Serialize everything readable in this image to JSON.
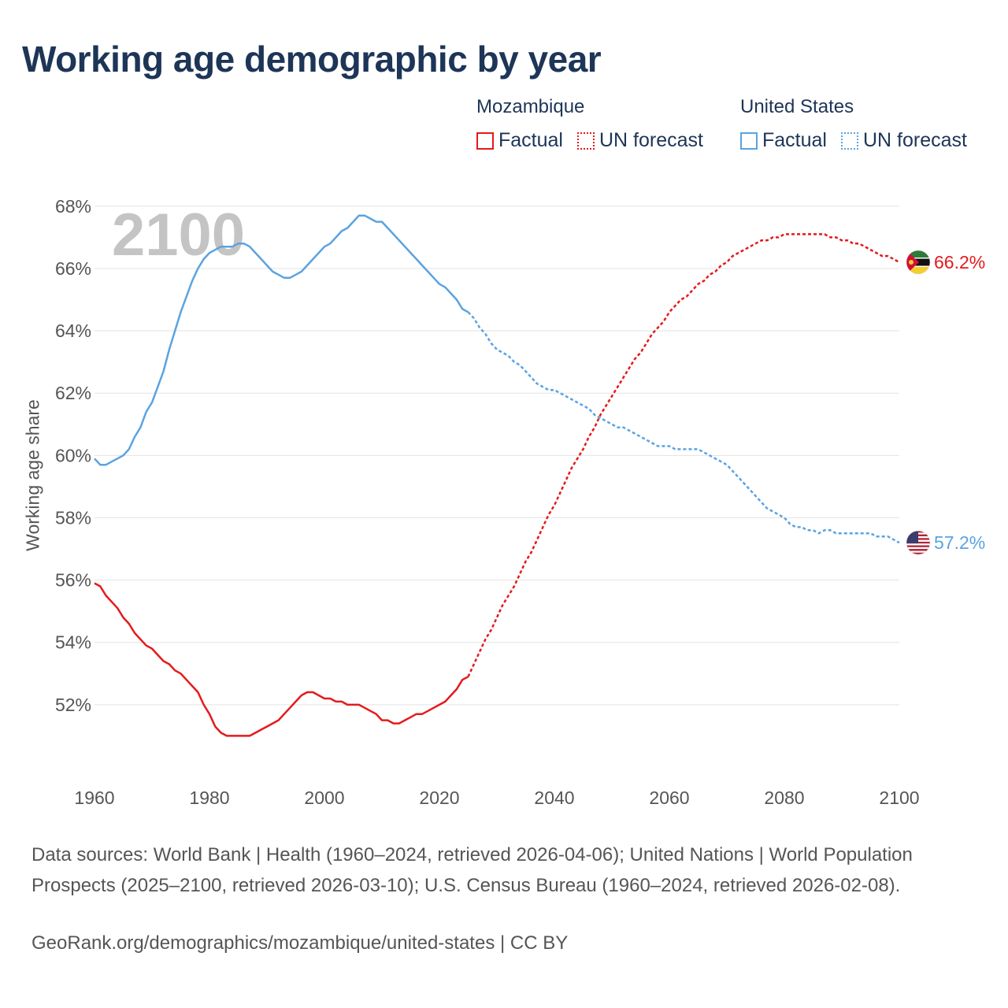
{
  "title": "Working age demographic by year",
  "year_watermark": "2100",
  "legend": {
    "groups": [
      {
        "country": "Mozambique",
        "color": "#e41a1c",
        "factual": "Factual",
        "forecast": "UN forecast"
      },
      {
        "country": "United States",
        "color": "#5ba3e0",
        "factual": "Factual",
        "forecast": "UN forecast"
      }
    ]
  },
  "sources": "Data sources: World Bank | Health (1960–2024, retrieved 2026-04-06); United Nations | World Population Prospects (2025–2100, retrieved 2026-03-10); U.S. Census Bureau (1960–2024, retrieved 2026-02-08).",
  "url": "GeoRank.org/demographics/mozambique/united-states | CC BY",
  "chart_data": {
    "type": "line",
    "title": "Working age demographic by year",
    "xlabel": "",
    "ylabel": "Working age share",
    "xlim": [
      1960,
      2100
    ],
    "ylim": [
      50,
      68.5
    ],
    "x_ticks": [
      1960,
      1980,
      2000,
      2020,
      2040,
      2060,
      2080,
      2100
    ],
    "y_ticks": [
      52,
      54,
      56,
      58,
      60,
      62,
      64,
      66,
      68
    ],
    "y_tick_labels": [
      "52%",
      "54%",
      "56%",
      "58%",
      "60%",
      "62%",
      "64%",
      "66%",
      "68%"
    ],
    "forecast_start": 2024,
    "series": [
      {
        "name": "Mozambique",
        "color": "#e41a1c",
        "end_label": "66.2%",
        "flag": "mozambique-flag-icon",
        "points": [
          [
            1960,
            55.9
          ],
          [
            1961,
            55.8
          ],
          [
            1962,
            55.5
          ],
          [
            1963,
            55.3
          ],
          [
            1964,
            55.1
          ],
          [
            1965,
            54.8
          ],
          [
            1966,
            54.6
          ],
          [
            1967,
            54.3
          ],
          [
            1968,
            54.1
          ],
          [
            1969,
            53.9
          ],
          [
            1970,
            53.8
          ],
          [
            1971,
            53.6
          ],
          [
            1972,
            53.4
          ],
          [
            1973,
            53.3
          ],
          [
            1974,
            53.1
          ],
          [
            1975,
            53.0
          ],
          [
            1976,
            52.8
          ],
          [
            1977,
            52.6
          ],
          [
            1978,
            52.4
          ],
          [
            1979,
            52.0
          ],
          [
            1980,
            51.7
          ],
          [
            1981,
            51.3
          ],
          [
            1982,
            51.1
          ],
          [
            1983,
            51.0
          ],
          [
            1984,
            51.0
          ],
          [
            1985,
            51.0
          ],
          [
            1986,
            51.0
          ],
          [
            1987,
            51.0
          ],
          [
            1988,
            51.1
          ],
          [
            1989,
            51.2
          ],
          [
            1990,
            51.3
          ],
          [
            1991,
            51.4
          ],
          [
            1992,
            51.5
          ],
          [
            1993,
            51.7
          ],
          [
            1994,
            51.9
          ],
          [
            1995,
            52.1
          ],
          [
            1996,
            52.3
          ],
          [
            1997,
            52.4
          ],
          [
            1998,
            52.4
          ],
          [
            1999,
            52.3
          ],
          [
            2000,
            52.2
          ],
          [
            2001,
            52.2
          ],
          [
            2002,
            52.1
          ],
          [
            2003,
            52.1
          ],
          [
            2004,
            52.0
          ],
          [
            2005,
            52.0
          ],
          [
            2006,
            52.0
          ],
          [
            2007,
            51.9
          ],
          [
            2008,
            51.8
          ],
          [
            2009,
            51.7
          ],
          [
            2010,
            51.5
          ],
          [
            2011,
            51.5
          ],
          [
            2012,
            51.4
          ],
          [
            2013,
            51.4
          ],
          [
            2014,
            51.5
          ],
          [
            2015,
            51.6
          ],
          [
            2016,
            51.7
          ],
          [
            2017,
            51.7
          ],
          [
            2018,
            51.8
          ],
          [
            2019,
            51.9
          ],
          [
            2020,
            52.0
          ],
          [
            2021,
            52.1
          ],
          [
            2022,
            52.3
          ],
          [
            2023,
            52.5
          ],
          [
            2024,
            52.8
          ],
          [
            2025,
            52.9
          ],
          [
            2026,
            53.3
          ],
          [
            2027,
            53.7
          ],
          [
            2028,
            54.1
          ],
          [
            2029,
            54.4
          ],
          [
            2030,
            54.8
          ],
          [
            2031,
            55.2
          ],
          [
            2032,
            55.5
          ],
          [
            2033,
            55.8
          ],
          [
            2034,
            56.2
          ],
          [
            2035,
            56.6
          ],
          [
            2036,
            56.9
          ],
          [
            2037,
            57.3
          ],
          [
            2038,
            57.7
          ],
          [
            2039,
            58.1
          ],
          [
            2040,
            58.4
          ],
          [
            2041,
            58.8
          ],
          [
            2042,
            59.2
          ],
          [
            2043,
            59.6
          ],
          [
            2044,
            59.9
          ],
          [
            2045,
            60.2
          ],
          [
            2046,
            60.6
          ],
          [
            2047,
            60.9
          ],
          [
            2048,
            61.3
          ],
          [
            2049,
            61.6
          ],
          [
            2050,
            61.9
          ],
          [
            2051,
            62.2
          ],
          [
            2052,
            62.5
          ],
          [
            2053,
            62.8
          ],
          [
            2054,
            63.1
          ],
          [
            2055,
            63.3
          ],
          [
            2056,
            63.6
          ],
          [
            2057,
            63.9
          ],
          [
            2058,
            64.1
          ],
          [
            2059,
            64.3
          ],
          [
            2060,
            64.6
          ],
          [
            2061,
            64.8
          ],
          [
            2062,
            65.0
          ],
          [
            2063,
            65.1
          ],
          [
            2064,
            65.3
          ],
          [
            2065,
            65.5
          ],
          [
            2066,
            65.6
          ],
          [
            2067,
            65.8
          ],
          [
            2068,
            65.9
          ],
          [
            2069,
            66.1
          ],
          [
            2070,
            66.2
          ],
          [
            2071,
            66.4
          ],
          [
            2072,
            66.5
          ],
          [
            2073,
            66.6
          ],
          [
            2074,
            66.7
          ],
          [
            2075,
            66.8
          ],
          [
            2076,
            66.9
          ],
          [
            2077,
            66.9
          ],
          [
            2078,
            67.0
          ],
          [
            2079,
            67.0
          ],
          [
            2080,
            67.1
          ],
          [
            2081,
            67.1
          ],
          [
            2082,
            67.1
          ],
          [
            2083,
            67.1
          ],
          [
            2084,
            67.1
          ],
          [
            2085,
            67.1
          ],
          [
            2086,
            67.1
          ],
          [
            2087,
            67.1
          ],
          [
            2088,
            67.0
          ],
          [
            2089,
            67.0
          ],
          [
            2090,
            66.9
          ],
          [
            2091,
            66.9
          ],
          [
            2092,
            66.8
          ],
          [
            2093,
            66.8
          ],
          [
            2094,
            66.7
          ],
          [
            2095,
            66.6
          ],
          [
            2096,
            66.5
          ],
          [
            2097,
            66.4
          ],
          [
            2098,
            66.4
          ],
          [
            2099,
            66.3
          ],
          [
            2100,
            66.2
          ]
        ]
      },
      {
        "name": "United States",
        "color": "#5ba3e0",
        "end_label": "57.2%",
        "flag": "united-states-flag-icon",
        "points": [
          [
            1960,
            59.9
          ],
          [
            1961,
            59.7
          ],
          [
            1962,
            59.7
          ],
          [
            1963,
            59.8
          ],
          [
            1964,
            59.9
          ],
          [
            1965,
            60.0
          ],
          [
            1966,
            60.2
          ],
          [
            1967,
            60.6
          ],
          [
            1968,
            60.9
          ],
          [
            1969,
            61.4
          ],
          [
            1970,
            61.7
          ],
          [
            1971,
            62.2
          ],
          [
            1972,
            62.7
          ],
          [
            1973,
            63.4
          ],
          [
            1974,
            64.0
          ],
          [
            1975,
            64.6
          ],
          [
            1976,
            65.1
          ],
          [
            1977,
            65.6
          ],
          [
            1978,
            66.0
          ],
          [
            1979,
            66.3
          ],
          [
            1980,
            66.5
          ],
          [
            1981,
            66.6
          ],
          [
            1982,
            66.7
          ],
          [
            1983,
            66.7
          ],
          [
            1984,
            66.7
          ],
          [
            1985,
            66.8
          ],
          [
            1986,
            66.8
          ],
          [
            1987,
            66.7
          ],
          [
            1988,
            66.5
          ],
          [
            1989,
            66.3
          ],
          [
            1990,
            66.1
          ],
          [
            1991,
            65.9
          ],
          [
            1992,
            65.8
          ],
          [
            1993,
            65.7
          ],
          [
            1994,
            65.7
          ],
          [
            1995,
            65.8
          ],
          [
            1996,
            65.9
          ],
          [
            1997,
            66.1
          ],
          [
            1998,
            66.3
          ],
          [
            1999,
            66.5
          ],
          [
            2000,
            66.7
          ],
          [
            2001,
            66.8
          ],
          [
            2002,
            67.0
          ],
          [
            2003,
            67.2
          ],
          [
            2004,
            67.3
          ],
          [
            2005,
            67.5
          ],
          [
            2006,
            67.7
          ],
          [
            2007,
            67.7
          ],
          [
            2008,
            67.6
          ],
          [
            2009,
            67.5
          ],
          [
            2010,
            67.5
          ],
          [
            2011,
            67.3
          ],
          [
            2012,
            67.1
          ],
          [
            2013,
            66.9
          ],
          [
            2014,
            66.7
          ],
          [
            2015,
            66.5
          ],
          [
            2016,
            66.3
          ],
          [
            2017,
            66.1
          ],
          [
            2018,
            65.9
          ],
          [
            2019,
            65.7
          ],
          [
            2020,
            65.5
          ],
          [
            2021,
            65.4
          ],
          [
            2022,
            65.2
          ],
          [
            2023,
            65.0
          ],
          [
            2024,
            64.7
          ],
          [
            2025,
            64.6
          ],
          [
            2026,
            64.4
          ],
          [
            2027,
            64.1
          ],
          [
            2028,
            63.9
          ],
          [
            2029,
            63.6
          ],
          [
            2030,
            63.4
          ],
          [
            2031,
            63.3
          ],
          [
            2032,
            63.2
          ],
          [
            2033,
            63.0
          ],
          [
            2034,
            62.9
          ],
          [
            2035,
            62.7
          ],
          [
            2036,
            62.5
          ],
          [
            2037,
            62.3
          ],
          [
            2038,
            62.2
          ],
          [
            2039,
            62.1
          ],
          [
            2040,
            62.1
          ],
          [
            2041,
            62.0
          ],
          [
            2042,
            61.9
          ],
          [
            2043,
            61.8
          ],
          [
            2044,
            61.7
          ],
          [
            2045,
            61.6
          ],
          [
            2046,
            61.5
          ],
          [
            2047,
            61.3
          ],
          [
            2048,
            61.2
          ],
          [
            2049,
            61.1
          ],
          [
            2050,
            61.0
          ],
          [
            2051,
            60.9
          ],
          [
            2052,
            60.9
          ],
          [
            2053,
            60.8
          ],
          [
            2054,
            60.7
          ],
          [
            2055,
            60.6
          ],
          [
            2056,
            60.5
          ],
          [
            2057,
            60.4
          ],
          [
            2058,
            60.3
          ],
          [
            2059,
            60.3
          ],
          [
            2060,
            60.3
          ],
          [
            2061,
            60.2
          ],
          [
            2062,
            60.2
          ],
          [
            2063,
            60.2
          ],
          [
            2064,
            60.2
          ],
          [
            2065,
            60.2
          ],
          [
            2066,
            60.1
          ],
          [
            2067,
            60.0
          ],
          [
            2068,
            59.9
          ],
          [
            2069,
            59.8
          ],
          [
            2070,
            59.7
          ],
          [
            2071,
            59.5
          ],
          [
            2072,
            59.3
          ],
          [
            2073,
            59.1
          ],
          [
            2074,
            58.9
          ],
          [
            2075,
            58.7
          ],
          [
            2076,
            58.5
          ],
          [
            2077,
            58.3
          ],
          [
            2078,
            58.2
          ],
          [
            2079,
            58.1
          ],
          [
            2080,
            58.0
          ],
          [
            2081,
            57.8
          ],
          [
            2082,
            57.7
          ],
          [
            2083,
            57.7
          ],
          [
            2084,
            57.6
          ],
          [
            2085,
            57.6
          ],
          [
            2086,
            57.5
          ],
          [
            2087,
            57.6
          ],
          [
            2088,
            57.6
          ],
          [
            2089,
            57.5
          ],
          [
            2090,
            57.5
          ],
          [
            2091,
            57.5
          ],
          [
            2092,
            57.5
          ],
          [
            2093,
            57.5
          ],
          [
            2094,
            57.5
          ],
          [
            2095,
            57.5
          ],
          [
            2096,
            57.4
          ],
          [
            2097,
            57.4
          ],
          [
            2098,
            57.4
          ],
          [
            2099,
            57.3
          ],
          [
            2100,
            57.2
          ]
        ]
      }
    ]
  }
}
